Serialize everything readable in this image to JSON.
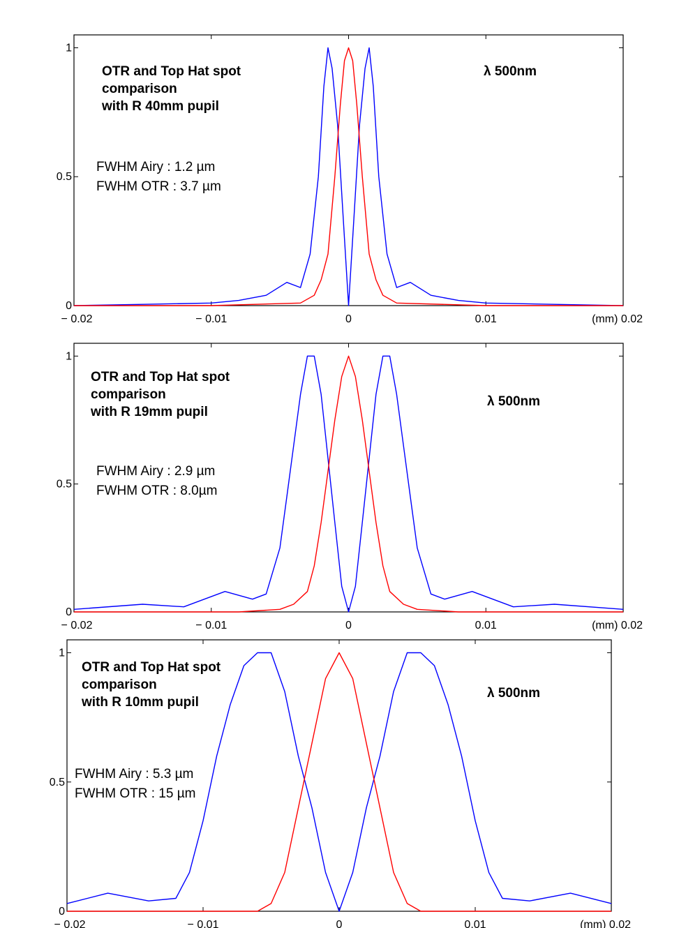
{
  "colors": {
    "otr": "#0000ff",
    "tophat": "#ff0000",
    "axis": "#000000"
  },
  "chart_data": [
    {
      "type": "line",
      "title_lines": [
        "OTR and Top Hat spot",
        "comparison",
        "with R 40mm pupil"
      ],
      "wavelength_label": "λ 500nm",
      "fwhm_lines": [
        "FWHM Airy  : 1.2 µm",
        "FWHM OTR : 3.7 µm"
      ],
      "xlim": [
        -0.02,
        0.02
      ],
      "ylim": [
        0,
        1.05
      ],
      "xticks": [
        -0.02,
        -0.01,
        0,
        0.01,
        0.02
      ],
      "xtick_labels": [
        "− 0.02",
        "− 0.01",
        "0",
        "0.01",
        "(mm) 0.02"
      ],
      "yticks": [
        0,
        0.5,
        1
      ],
      "ytick_labels": [
        "0",
        "0.5",
        "1"
      ],
      "series": [
        {
          "key": "otr",
          "x": [
            -0.02,
            -0.015,
            -0.01,
            -0.008,
            -0.006,
            -0.0045,
            -0.0035,
            -0.0028,
            -0.0022,
            -0.0018,
            -0.0015,
            -0.0012,
            -0.0008,
            -0.0004,
            0,
            0.0004,
            0.0008,
            0.0012,
            0.0015,
            0.0018,
            0.0022,
            0.0028,
            0.0035,
            0.0045,
            0.006,
            0.008,
            0.01,
            0.015,
            0.02
          ],
          "y": [
            0,
            0.005,
            0.01,
            0.02,
            0.04,
            0.09,
            0.07,
            0.2,
            0.5,
            0.85,
            1.0,
            0.92,
            0.7,
            0.35,
            0,
            0.35,
            0.7,
            0.92,
            1.0,
            0.85,
            0.5,
            0.2,
            0.07,
            0.09,
            0.04,
            0.02,
            0.01,
            0.005,
            0
          ]
        },
        {
          "key": "tophat",
          "x": [
            -0.02,
            -0.01,
            -0.0035,
            -0.0025,
            -0.002,
            -0.0015,
            -0.001,
            -0.0006,
            -0.0003,
            0,
            0.0003,
            0.0006,
            0.001,
            0.0015,
            0.002,
            0.0025,
            0.0035,
            0.01,
            0.02
          ],
          "y": [
            0,
            0,
            0.01,
            0.04,
            0.1,
            0.2,
            0.5,
            0.78,
            0.95,
            1.0,
            0.95,
            0.78,
            0.5,
            0.2,
            0.1,
            0.04,
            0.01,
            0,
            0
          ]
        }
      ]
    },
    {
      "type": "line",
      "title_lines": [
        "OTR and Top Hat spot",
        "comparison",
        "with R 19mm pupil"
      ],
      "wavelength_label": "λ 500nm",
      "fwhm_lines": [
        "FWHM Airy  : 2.9 µm",
        "FWHM OTR : 8.0µm"
      ],
      "xlim": [
        -0.02,
        0.02
      ],
      "ylim": [
        0,
        1.05
      ],
      "xticks": [
        -0.02,
        -0.01,
        0,
        0.01,
        0.02
      ],
      "xtick_labels": [
        "− 0.02",
        "− 0.01",
        "0",
        "0.01",
        "(mm)  0.02"
      ],
      "yticks": [
        0,
        0.5,
        1
      ],
      "ytick_labels": [
        "0",
        "0.5",
        "1"
      ],
      "series": [
        {
          "key": "otr",
          "x": [
            -0.02,
            -0.015,
            -0.012,
            -0.009,
            -0.007,
            -0.006,
            -0.005,
            -0.0045,
            -0.004,
            -0.0035,
            -0.003,
            -0.0025,
            -0.002,
            -0.0015,
            -0.001,
            -0.0005,
            0,
            0.0005,
            0.001,
            0.0015,
            0.002,
            0.0025,
            0.003,
            0.0035,
            0.004,
            0.0045,
            0.005,
            0.006,
            0.007,
            0.009,
            0.012,
            0.015,
            0.02
          ],
          "y": [
            0.01,
            0.03,
            0.02,
            0.08,
            0.05,
            0.07,
            0.25,
            0.45,
            0.65,
            0.85,
            1.0,
            1.0,
            0.85,
            0.6,
            0.35,
            0.1,
            0,
            0.1,
            0.35,
            0.6,
            0.85,
            1.0,
            1.0,
            0.85,
            0.65,
            0.45,
            0.25,
            0.07,
            0.05,
            0.08,
            0.02,
            0.03,
            0.01
          ]
        },
        {
          "key": "tophat",
          "x": [
            -0.02,
            -0.008,
            -0.005,
            -0.004,
            -0.003,
            -0.0025,
            -0.002,
            -0.0015,
            -0.001,
            -0.0005,
            0,
            0.0005,
            0.001,
            0.0015,
            0.002,
            0.0025,
            0.003,
            0.004,
            0.005,
            0.008,
            0.02
          ],
          "y": [
            0,
            0,
            0.01,
            0.03,
            0.08,
            0.18,
            0.35,
            0.55,
            0.75,
            0.92,
            1.0,
            0.92,
            0.75,
            0.55,
            0.35,
            0.18,
            0.08,
            0.03,
            0.01,
            0,
            0
          ]
        }
      ]
    },
    {
      "type": "line",
      "title_lines": [
        "OTR and Top Hat spot",
        "comparison",
        "with R 10mm pupil"
      ],
      "wavelength_label": "λ 500nm",
      "fwhm_lines": [
        "FWHM Airy  : 5.3 µm",
        "FWHM OTR :  15 µm"
      ],
      "xlim": [
        -0.02,
        0.02
      ],
      "ylim": [
        0,
        1.05
      ],
      "xticks": [
        -0.02,
        -0.01,
        0,
        0.01,
        0.02
      ],
      "xtick_labels": [
        "− 0.02",
        "− 0.01",
        "0",
        "0.01",
        "(mm)  0.02"
      ],
      "yticks": [
        0,
        0.5,
        1
      ],
      "ytick_labels": [
        "0",
        "0.5",
        "1"
      ],
      "series": [
        {
          "key": "otr",
          "x": [
            -0.02,
            -0.017,
            -0.014,
            -0.012,
            -0.011,
            -0.01,
            -0.009,
            -0.008,
            -0.007,
            -0.006,
            -0.005,
            -0.004,
            -0.003,
            -0.002,
            -0.001,
            0,
            0.001,
            0.002,
            0.003,
            0.004,
            0.005,
            0.006,
            0.007,
            0.008,
            0.009,
            0.01,
            0.011,
            0.012,
            0.014,
            0.017,
            0.02
          ],
          "y": [
            0.03,
            0.07,
            0.04,
            0.05,
            0.15,
            0.35,
            0.6,
            0.8,
            0.95,
            1.0,
            1.0,
            0.85,
            0.6,
            0.4,
            0.15,
            0,
            0.15,
            0.4,
            0.6,
            0.85,
            1.0,
            1.0,
            0.95,
            0.8,
            0.6,
            0.35,
            0.15,
            0.05,
            0.04,
            0.07,
            0.03
          ]
        },
        {
          "key": "tophat",
          "x": [
            -0.02,
            -0.006,
            -0.005,
            -0.004,
            -0.003,
            -0.002,
            -0.001,
            0,
            0.001,
            0.002,
            0.003,
            0.004,
            0.005,
            0.006,
            0.02
          ],
          "y": [
            0,
            0,
            0.03,
            0.15,
            0.4,
            0.65,
            0.9,
            1.0,
            0.9,
            0.65,
            0.4,
            0.15,
            0.03,
            0,
            0
          ]
        }
      ]
    }
  ]
}
